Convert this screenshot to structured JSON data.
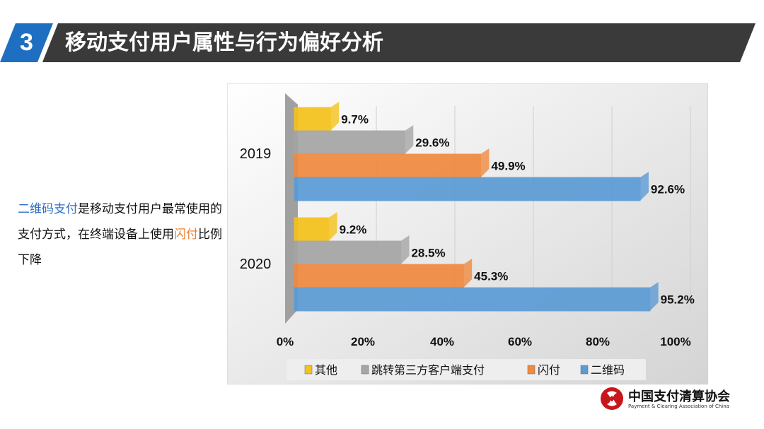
{
  "header": {
    "number": "3",
    "title": "移动支付用户属性与行为偏好分析"
  },
  "description": {
    "part1": "二维码支付",
    "part2": "是移动支付用户最常使用的支付方式，在终端设备上使用",
    "part3": "闪付",
    "part4": "比例下降"
  },
  "logo": {
    "cn": "中国支付清算协会",
    "en": "Payment & Clearing Association of China"
  },
  "chart_data": {
    "type": "bar",
    "orientation": "horizontal",
    "style": "3d",
    "categories": [
      "2019",
      "2020"
    ],
    "series": [
      {
        "name": "其他",
        "color": "#f5c21b",
        "values": [
          9.7,
          9.2
        ],
        "labels": [
          "9.7%",
          "9.2%"
        ]
      },
      {
        "name": "跳转第三方客户端支付",
        "color": "#a5a5a5",
        "values": [
          29.6,
          28.5
        ],
        "labels": [
          "29.6%",
          "28.5%"
        ]
      },
      {
        "name": "闪付",
        "color": "#f08a40",
        "values": [
          49.9,
          45.3
        ],
        "labels": [
          "49.9%",
          "45.3%"
        ]
      },
      {
        "name": "二维码",
        "color": "#5b9bd5",
        "values": [
          92.6,
          95.2
        ],
        "labels": [
          "92.6%",
          "95.2%"
        ]
      }
    ],
    "xlim": [
      0,
      100
    ],
    "xticks": [
      "0%",
      "20%",
      "40%",
      "60%",
      "80%",
      "100%"
    ],
    "grid": true,
    "legend": "bottom"
  }
}
